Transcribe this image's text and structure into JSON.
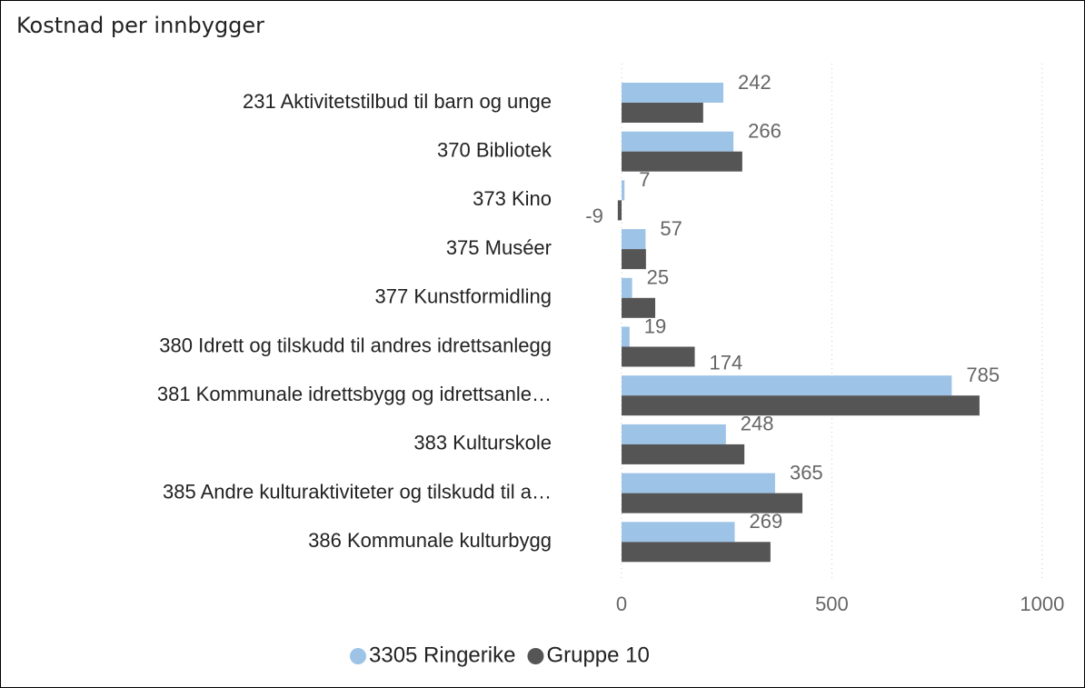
{
  "chart_data": {
    "type": "hbar",
    "title": "Kostnad per innbygger",
    "categories": [
      "231 Aktivitetstilbud til barn og unge",
      "370 Bibliotek",
      "373 Kino",
      "375 Muséer",
      "377 Kunstformidling",
      "380 Idrett og tilskudd til andres idrettsanlegg",
      "381 Kommunale idrettsbygg og idrettsanle…",
      "383 Kulturskole",
      "385 Andre kulturaktiviteter og tilskudd til a…",
      "386 Kommunale kulturbygg"
    ],
    "series": [
      {
        "name": "3305 Ringerike",
        "color": "#9dc3e6",
        "values": [
          242,
          266,
          7,
          57,
          25,
          19,
          785,
          248,
          365,
          269
        ]
      },
      {
        "name": "Gruppe 10",
        "color": "#555555",
        "values": [
          194,
          287,
          -9,
          58,
          80,
          174,
          851,
          292,
          430,
          354
        ],
        "value_labels": [
          null,
          null,
          "-9",
          null,
          null,
          "174",
          null,
          null,
          null,
          null
        ]
      }
    ],
    "xlim": [
      -13,
      1050
    ],
    "xticks": [
      0,
      500,
      1000
    ],
    "grid": true,
    "legend": "bottom"
  }
}
